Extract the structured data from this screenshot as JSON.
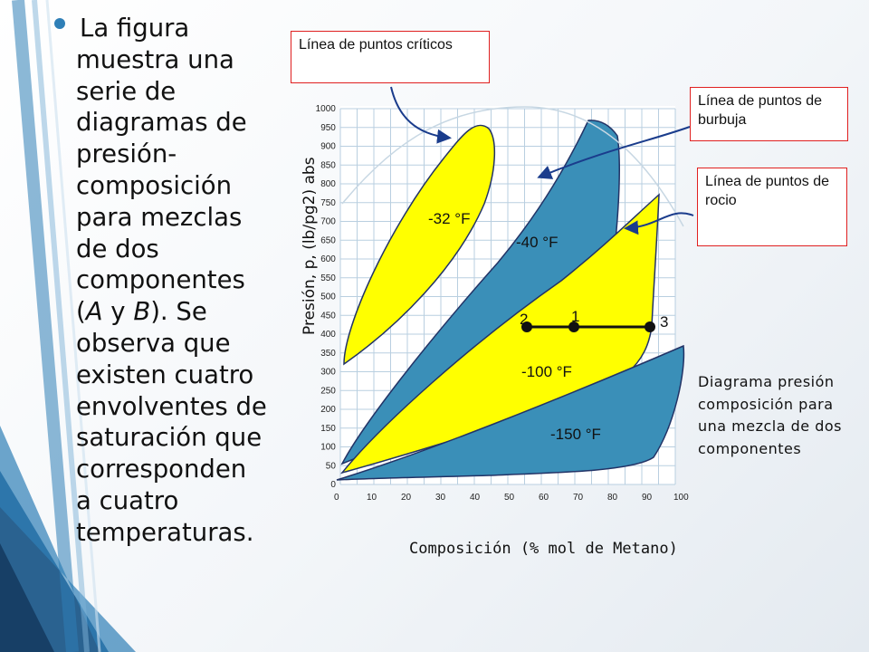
{
  "main_text": {
    "line1": "La figura",
    "lines": [
      "muestra una",
      "serie de",
      "diagramas de",
      "presión-",
      "composición",
      "para mezclas",
      "de dos",
      "componentes"
    ],
    "line_ab_pre": "(",
    "A": "A",
    "y": " y ",
    "B": "B",
    "line_ab_post": "). Se",
    "lines2": [
      "observa que",
      "existen cuatro",
      "envolventes de",
      "saturación que",
      "corresponden",
      "a cuatro",
      "temperaturas."
    ]
  },
  "callouts": {
    "criticos": "Línea de puntos críticos",
    "burbuja": "Línea de puntos de burbuja",
    "rocio": "Línea de puntos de rocio"
  },
  "side_note": "Diagrama presión composición para una mezcla de dos componentes",
  "colors": {
    "yellow": "#ffff00",
    "blue": "#3a8fb8",
    "bullet": "#2f7fb7",
    "callout_border": "#e02020"
  },
  "chart_data": {
    "type": "diagram",
    "xlabel": "Composición (% mol de Metano)",
    "ylabel": "Presión, p, (lb/pg2) abs",
    "x_ticks": [
      "0",
      "10",
      "20",
      "30",
      "40",
      "50",
      "60",
      "70",
      "80",
      "90",
      "100"
    ],
    "y_ticks": [
      "0",
      "50",
      "100",
      "150",
      "200",
      "250",
      "300",
      "350",
      "400",
      "450",
      "500",
      "550",
      "600",
      "650",
      "700",
      "750",
      "800",
      "850",
      "900",
      "950",
      "1000"
    ],
    "envelopes": [
      {
        "label": "-32 °F"
      },
      {
        "label": "-40 °F"
      },
      {
        "label": "-100 °F"
      },
      {
        "label": "-150 °F"
      }
    ],
    "tie_line_points": [
      "2",
      "1",
      "3"
    ]
  }
}
